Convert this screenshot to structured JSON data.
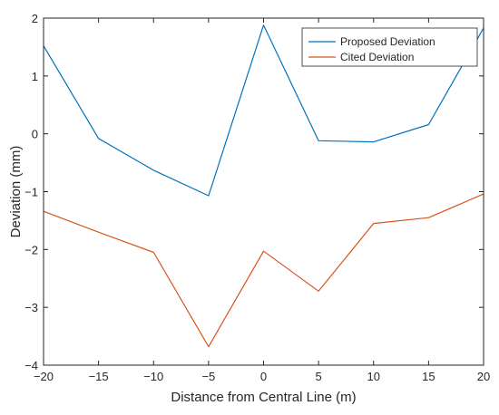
{
  "chart_data": {
    "type": "line",
    "title": "",
    "xlabel": "Distance from Central Line (m)",
    "ylabel": "Deviation (mm)",
    "xlim": [
      -20,
      20
    ],
    "ylim": [
      -4,
      2
    ],
    "xticks": [
      -20,
      -15,
      -10,
      -5,
      0,
      5,
      10,
      15,
      20
    ],
    "xtick_labels": [
      "−20",
      "−15",
      "−10",
      "−5",
      "0",
      "5",
      "10",
      "15",
      "20"
    ],
    "yticks": [
      -4,
      -3,
      -2,
      -1,
      0,
      1,
      2
    ],
    "ytick_labels": [
      "−4",
      "−3",
      "−2",
      "−1",
      "0",
      "1",
      "2"
    ],
    "grid": false,
    "legend_position": "top-right",
    "x": [
      -20,
      -15,
      -10,
      -5,
      0,
      5,
      10,
      15,
      20
    ],
    "series": [
      {
        "name": "Proposed Deviation",
        "color": "#0072BD",
        "values": [
          1.52,
          -0.08,
          -0.63,
          -1.07,
          1.88,
          -0.12,
          -0.14,
          0.16,
          1.83
        ]
      },
      {
        "name": "Cited Deviation",
        "color": "#D95319",
        "values": [
          -1.34,
          -1.7,
          -2.05,
          -3.68,
          -2.03,
          -2.72,
          -1.55,
          -1.45,
          -1.04
        ]
      }
    ]
  }
}
